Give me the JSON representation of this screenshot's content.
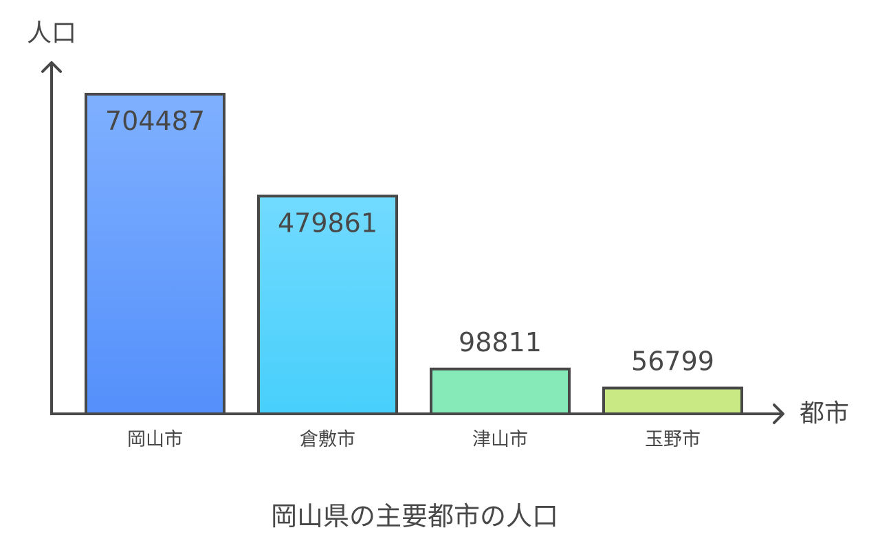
{
  "chart_data": {
    "type": "bar",
    "title": "岡山県の主要都市の人口",
    "xlabel": "都市",
    "ylabel": "人口",
    "categories": [
      "岡山市",
      "倉敷市",
      "津山市",
      "玉野市"
    ],
    "values": [
      704487,
      479861,
      98811,
      56799
    ],
    "value_labels": [
      "704487",
      "479861",
      "98811",
      "56799"
    ],
    "colors": [
      {
        "top": "#7fb0ff",
        "bottom": "#5490fb"
      },
      {
        "top": "#72daff",
        "bottom": "#47cffb"
      },
      {
        "top": "#86e9b8",
        "bottom": "#86e9b8"
      },
      {
        "top": "#c8e984",
        "bottom": "#c8e984"
      }
    ],
    "axis_color": "#484848",
    "grid": false,
    "legend": "none"
  }
}
